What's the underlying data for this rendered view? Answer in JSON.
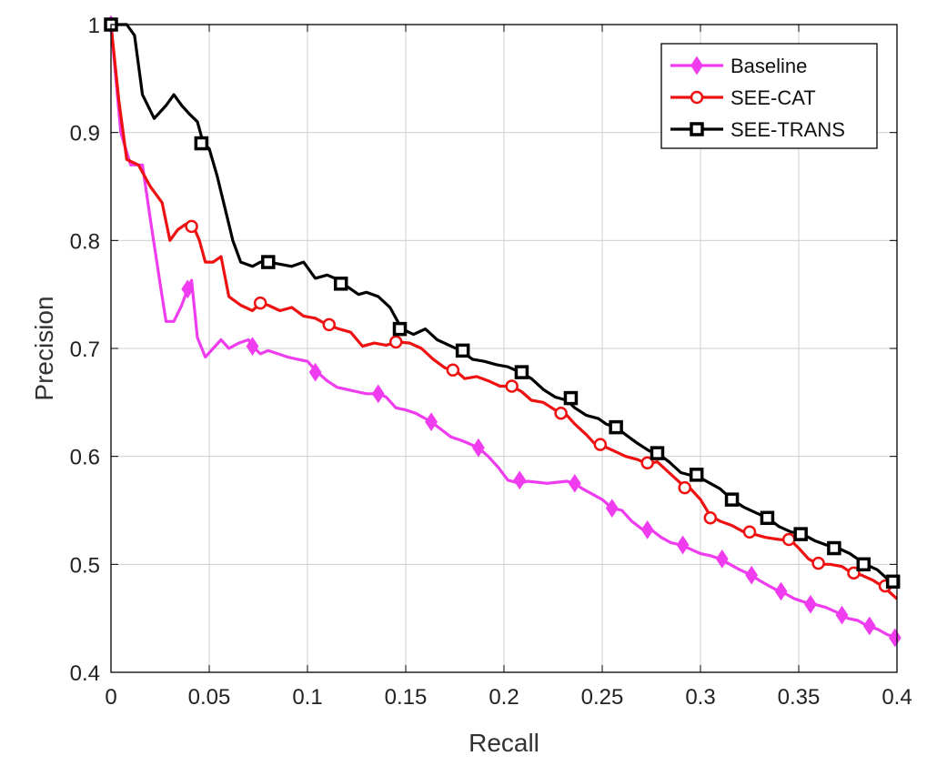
{
  "chart_data": {
    "type": "line",
    "xlabel": "Recall",
    "ylabel": "Precision",
    "xlim": [
      0,
      0.4
    ],
    "ylim": [
      0.4,
      1.0
    ],
    "grid": true,
    "legend_position": "top-right",
    "xticks": [
      "0",
      "0.05",
      "0.1",
      "0.15",
      "0.2",
      "0.25",
      "0.3",
      "0.35",
      "0.4"
    ],
    "yticks": [
      "0.4",
      "0.5",
      "0.6",
      "0.7",
      "0.8",
      "0.9",
      "1"
    ],
    "series": [
      {
        "name": "Baseline",
        "color": "#ee3cee",
        "marker": "diamond",
        "x": [
          0.0,
          0.005,
          0.01,
          0.016,
          0.02,
          0.025,
          0.028,
          0.032,
          0.036,
          0.039,
          0.041,
          0.044,
          0.048,
          0.052,
          0.056,
          0.06,
          0.065,
          0.07,
          0.072,
          0.076,
          0.08,
          0.085,
          0.09,
          0.095,
          0.1,
          0.105,
          0.11,
          0.115,
          0.12,
          0.125,
          0.13,
          0.136,
          0.14,
          0.145,
          0.15,
          0.155,
          0.16,
          0.163,
          0.168,
          0.173,
          0.178,
          0.182,
          0.187,
          0.192,
          0.197,
          0.202,
          0.208,
          0.212,
          0.217,
          0.222,
          0.227,
          0.232,
          0.236,
          0.24,
          0.245,
          0.25,
          0.255,
          0.26,
          0.265,
          0.27,
          0.275,
          0.28,
          0.285,
          0.29,
          0.295,
          0.3,
          0.305,
          0.31,
          0.315,
          0.32,
          0.326,
          0.33,
          0.335,
          0.34,
          0.343,
          0.348,
          0.353,
          0.358,
          0.364,
          0.37,
          0.375,
          0.38,
          0.385,
          0.39,
          0.395,
          0.4
        ],
        "y": [
          1.0,
          0.9,
          0.87,
          0.87,
          0.82,
          0.76,
          0.725,
          0.725,
          0.74,
          0.755,
          0.763,
          0.71,
          0.692,
          0.7,
          0.708,
          0.7,
          0.705,
          0.708,
          0.702,
          0.695,
          0.698,
          0.695,
          0.692,
          0.69,
          0.688,
          0.678,
          0.67,
          0.664,
          0.662,
          0.66,
          0.658,
          0.658,
          0.655,
          0.645,
          0.643,
          0.64,
          0.635,
          0.632,
          0.625,
          0.618,
          0.615,
          0.612,
          0.608,
          0.6,
          0.59,
          0.578,
          0.575,
          0.577,
          0.576,
          0.575,
          0.576,
          0.577,
          0.575,
          0.57,
          0.565,
          0.56,
          0.552,
          0.55,
          0.54,
          0.533,
          0.532,
          0.525,
          0.52,
          0.518,
          0.514,
          0.51,
          0.508,
          0.505,
          0.5,
          0.495,
          0.49,
          0.485,
          0.48,
          0.475,
          0.473,
          0.468,
          0.465,
          0.463,
          0.46,
          0.455,
          0.45,
          0.448,
          0.443,
          0.44,
          0.435,
          0.432
        ]
      },
      {
        "name": "SEE-CAT",
        "color": "#ee1111",
        "marker": "circle",
        "x": [
          0.0,
          0.004,
          0.008,
          0.014,
          0.02,
          0.026,
          0.03,
          0.034,
          0.038,
          0.042,
          0.045,
          0.048,
          0.052,
          0.056,
          0.06,
          0.066,
          0.072,
          0.076,
          0.08,
          0.086,
          0.092,
          0.098,
          0.104,
          0.11,
          0.116,
          0.122,
          0.128,
          0.134,
          0.14,
          0.146,
          0.152,
          0.158,
          0.164,
          0.17,
          0.175,
          0.18,
          0.186,
          0.192,
          0.198,
          0.204,
          0.209,
          0.214,
          0.22,
          0.226,
          0.231,
          0.236,
          0.242,
          0.246,
          0.25,
          0.256,
          0.262,
          0.268,
          0.273,
          0.278,
          0.284,
          0.29,
          0.295,
          0.3,
          0.305,
          0.31,
          0.316,
          0.322,
          0.327,
          0.333,
          0.34,
          0.346,
          0.35,
          0.355,
          0.36,
          0.366,
          0.372,
          0.377,
          0.382,
          0.388,
          0.394,
          0.4
        ],
        "y": [
          1.0,
          0.93,
          0.875,
          0.87,
          0.85,
          0.835,
          0.8,
          0.81,
          0.815,
          0.813,
          0.8,
          0.78,
          0.78,
          0.785,
          0.748,
          0.74,
          0.735,
          0.742,
          0.74,
          0.735,
          0.738,
          0.73,
          0.728,
          0.722,
          0.718,
          0.715,
          0.702,
          0.705,
          0.703,
          0.706,
          0.705,
          0.7,
          0.69,
          0.682,
          0.68,
          0.672,
          0.674,
          0.67,
          0.665,
          0.665,
          0.66,
          0.652,
          0.65,
          0.643,
          0.64,
          0.63,
          0.62,
          0.612,
          0.61,
          0.605,
          0.6,
          0.597,
          0.593,
          0.595,
          0.585,
          0.575,
          0.57,
          0.56,
          0.545,
          0.54,
          0.536,
          0.53,
          0.528,
          0.525,
          0.523,
          0.522,
          0.515,
          0.505,
          0.5,
          0.5,
          0.498,
          0.492,
          0.49,
          0.485,
          0.478,
          0.468
        ]
      },
      {
        "name": "SEE-TRANS",
        "color": "#000000",
        "marker": "square",
        "x": [
          0.0,
          0.008,
          0.012,
          0.016,
          0.022,
          0.028,
          0.032,
          0.036,
          0.04,
          0.044,
          0.047,
          0.05,
          0.054,
          0.058,
          0.062,
          0.066,
          0.072,
          0.076,
          0.08,
          0.086,
          0.092,
          0.098,
          0.104,
          0.11,
          0.114,
          0.118,
          0.122,
          0.126,
          0.13,
          0.136,
          0.142,
          0.148,
          0.154,
          0.16,
          0.166,
          0.172,
          0.178,
          0.184,
          0.19,
          0.196,
          0.202,
          0.208,
          0.214,
          0.22,
          0.226,
          0.232,
          0.236,
          0.242,
          0.248,
          0.252,
          0.257,
          0.262,
          0.268,
          0.274,
          0.278,
          0.284,
          0.29,
          0.296,
          0.3,
          0.305,
          0.31,
          0.316,
          0.322,
          0.328,
          0.334,
          0.34,
          0.346,
          0.352,
          0.358,
          0.364,
          0.37,
          0.376,
          0.38,
          0.384,
          0.39,
          0.396,
          0.4
        ],
        "y": [
          1.0,
          1.0,
          0.99,
          0.935,
          0.913,
          0.925,
          0.935,
          0.925,
          0.917,
          0.91,
          0.89,
          0.885,
          0.86,
          0.83,
          0.8,
          0.78,
          0.776,
          0.78,
          0.78,
          0.778,
          0.776,
          0.78,
          0.765,
          0.768,
          0.765,
          0.76,
          0.755,
          0.75,
          0.752,
          0.748,
          0.738,
          0.718,
          0.713,
          0.718,
          0.708,
          0.703,
          0.698,
          0.69,
          0.688,
          0.685,
          0.683,
          0.678,
          0.672,
          0.662,
          0.655,
          0.652,
          0.645,
          0.638,
          0.635,
          0.63,
          0.627,
          0.62,
          0.612,
          0.605,
          0.603,
          0.595,
          0.585,
          0.582,
          0.58,
          0.575,
          0.57,
          0.56,
          0.553,
          0.548,
          0.543,
          0.535,
          0.53,
          0.528,
          0.522,
          0.518,
          0.515,
          0.51,
          0.505,
          0.5,
          0.495,
          0.485,
          0.484
        ]
      }
    ],
    "markers": {
      "Baseline": [
        [
          0.0,
          1.0
        ],
        [
          0.039,
          0.755
        ],
        [
          0.072,
          0.702
        ],
        [
          0.104,
          0.678
        ],
        [
          0.136,
          0.658
        ],
        [
          0.163,
          0.632
        ],
        [
          0.187,
          0.608
        ],
        [
          0.208,
          0.578
        ],
        [
          0.236,
          0.575
        ],
        [
          0.255,
          0.552
        ],
        [
          0.273,
          0.532
        ],
        [
          0.291,
          0.518
        ],
        [
          0.311,
          0.505
        ],
        [
          0.326,
          0.49
        ],
        [
          0.341,
          0.475
        ],
        [
          0.356,
          0.463
        ],
        [
          0.372,
          0.453
        ],
        [
          0.386,
          0.443
        ],
        [
          0.399,
          0.432
        ]
      ],
      "SEE-CAT": [
        [
          0.0,
          1.0
        ],
        [
          0.041,
          0.813
        ],
        [
          0.076,
          0.742
        ],
        [
          0.111,
          0.722
        ],
        [
          0.145,
          0.706
        ],
        [
          0.174,
          0.68
        ],
        [
          0.204,
          0.665
        ],
        [
          0.229,
          0.64
        ],
        [
          0.249,
          0.611
        ],
        [
          0.273,
          0.594
        ],
        [
          0.292,
          0.571
        ],
        [
          0.305,
          0.543
        ],
        [
          0.325,
          0.53
        ],
        [
          0.345,
          0.523
        ],
        [
          0.36,
          0.501
        ],
        [
          0.378,
          0.492
        ],
        [
          0.394,
          0.48
        ]
      ],
      "SEE-TRANS": [
        [
          0.0,
          1.0
        ],
        [
          0.046,
          0.89
        ],
        [
          0.08,
          0.78
        ],
        [
          0.117,
          0.76
        ],
        [
          0.147,
          0.718
        ],
        [
          0.179,
          0.698
        ],
        [
          0.209,
          0.678
        ],
        [
          0.234,
          0.654
        ],
        [
          0.257,
          0.627
        ],
        [
          0.278,
          0.603
        ],
        [
          0.298,
          0.583
        ],
        [
          0.316,
          0.56
        ],
        [
          0.334,
          0.543
        ],
        [
          0.351,
          0.528
        ],
        [
          0.368,
          0.515
        ],
        [
          0.383,
          0.5
        ],
        [
          0.398,
          0.484
        ]
      ]
    }
  }
}
